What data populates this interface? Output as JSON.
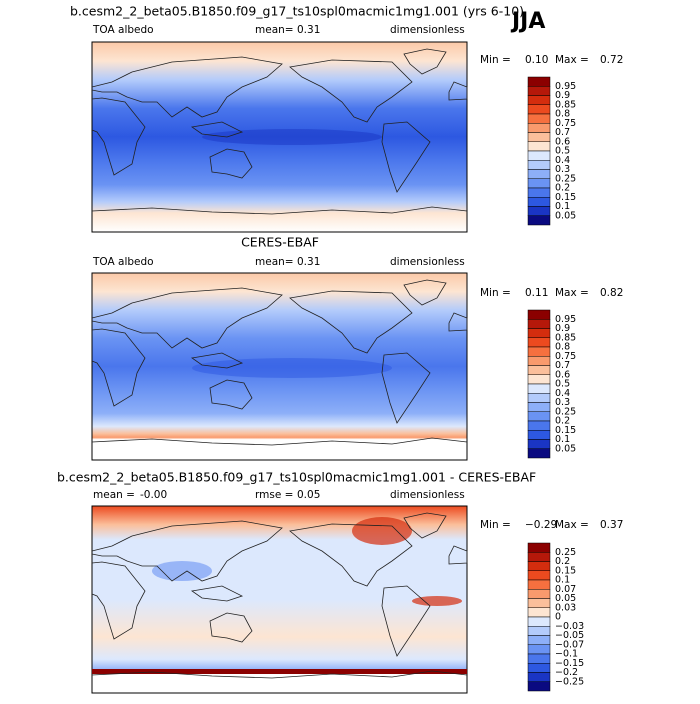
{
  "panels": [
    {
      "title": "b.cesm2_2_beta05.B1850.f09_g17_ts10spl0macmic1mg1.001 (yrs 6-10)",
      "season": "JJA",
      "variable": "TOA albedo",
      "mean_label": "mean=",
      "mean": "0.31",
      "units": "dimensionless",
      "min_label": "Min =",
      "min": "0.10",
      "max_label": "Max =",
      "max": "0.72",
      "colorbar": {
        "labels": [
          "0.95",
          "0.9",
          "0.85",
          "0.8",
          "0.75",
          "0.7",
          "0.6",
          "0.5",
          "0.4",
          "0.3",
          "0.25",
          "0.2",
          "0.15",
          "0.1",
          "0.05"
        ],
        "colors": [
          "#8b0000",
          "#b5180a",
          "#d42d0e",
          "#ec4a1f",
          "#f6703f",
          "#f99a6d",
          "#fbbf9b",
          "#fde5d2",
          "#dce8fd",
          "#b3cbfb",
          "#8daff8",
          "#6a93f3",
          "#4a76ec",
          "#2d58e1",
          "#1a35c4",
          "#0a0a80"
        ]
      }
    },
    {
      "title": "CERES-EBAF",
      "variable": "TOA albedo",
      "mean_label": "mean=",
      "mean": "0.31",
      "units": "dimensionless",
      "min_label": "Min =",
      "min": "0.11",
      "max_label": "Max =",
      "max": "0.82",
      "colorbar": {
        "labels": [
          "0.95",
          "0.9",
          "0.85",
          "0.8",
          "0.75",
          "0.7",
          "0.6",
          "0.5",
          "0.4",
          "0.3",
          "0.25",
          "0.2",
          "0.15",
          "0.1",
          "0.05"
        ],
        "colors": [
          "#8b0000",
          "#b5180a",
          "#d42d0e",
          "#ec4a1f",
          "#f6703f",
          "#f99a6d",
          "#fbbf9b",
          "#fde5d2",
          "#dce8fd",
          "#b3cbfb",
          "#8daff8",
          "#6a93f3",
          "#4a76ec",
          "#2d58e1",
          "#1a35c4",
          "#0a0a80"
        ]
      }
    },
    {
      "title": "b.cesm2_2_beta05.B1850.f09_g17_ts10spl0macmic1mg1.001 - CERES-EBAF",
      "mean_label": "mean =",
      "mean": "-0.00",
      "rmse_label": "rmse =",
      "rmse": "0.05",
      "units": "dimensionless",
      "min_label": "Min =",
      "min": "−0.29",
      "max_label": "Max =",
      "max": "0.37",
      "colorbar": {
        "labels": [
          "0.25",
          "0.2",
          "0.15",
          "0.1",
          "0.07",
          "0.05",
          "0.03",
          "0",
          "−0.03",
          "−0.05",
          "−0.07",
          "−0.1",
          "−0.15",
          "−0.2",
          "−0.25"
        ],
        "colors": [
          "#8b0000",
          "#b5180a",
          "#d42d0e",
          "#ec4a1f",
          "#f6703f",
          "#f99a6d",
          "#fbbf9b",
          "#fde5d2",
          "#dce8fd",
          "#b3cbfb",
          "#8daff8",
          "#6a93f3",
          "#4a76ec",
          "#2d58e1",
          "#1a35c4",
          "#0a0a80"
        ]
      }
    }
  ]
}
